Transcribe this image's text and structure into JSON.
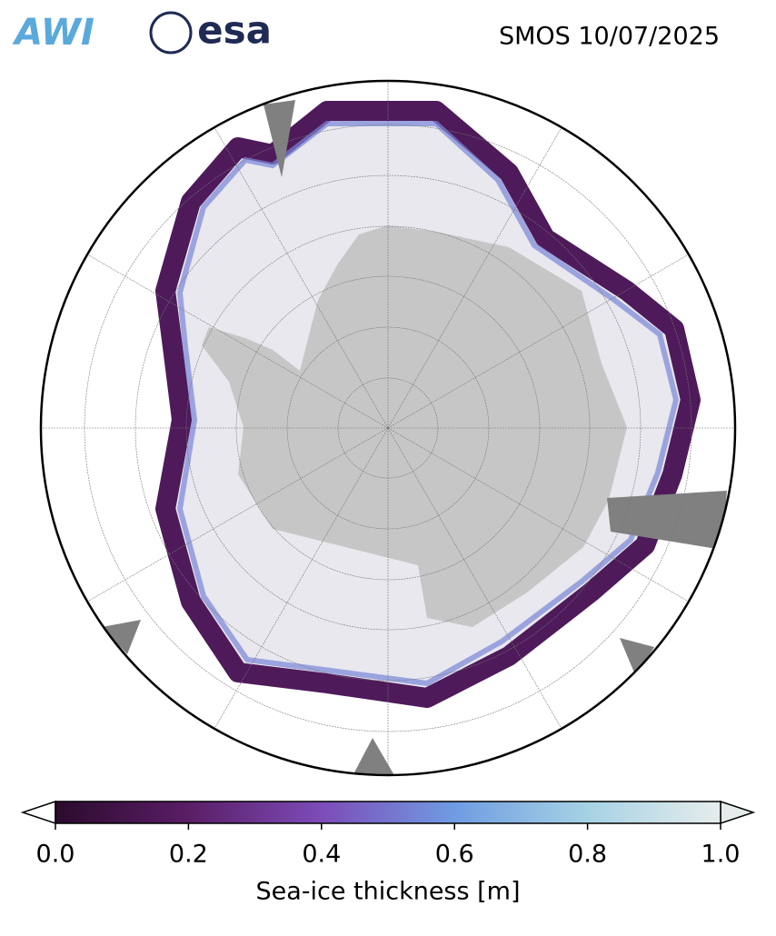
{
  "logos": [
    "AWI",
    "esa"
  ],
  "chart_data": {
    "type": "map",
    "title": "SMOS 10/07/2025",
    "colorbar": {
      "label": "Sea-ice thickness [m]",
      "lim": [
        0,
        1
      ],
      "ticks": [
        {
          "value": 0,
          "label": "0.0"
        },
        {
          "value": 0.2,
          "label": "0.2"
        },
        {
          "value": 0.4,
          "label": "0.4"
        },
        {
          "value": 0.6,
          "label": "0.6"
        },
        {
          "value": 0.8,
          "label": "0.8"
        },
        {
          "value": 1,
          "label": "1.0"
        }
      ],
      "colors": [
        "#2b0b2c",
        "#5a1d66",
        "#7c4cb8",
        "#6f9ce2",
        "#a6d2e4",
        "#e6ecec"
      ],
      "extend_low_color": "#ffffff",
      "extend_high_color": "#e6ecec"
    }
  }
}
